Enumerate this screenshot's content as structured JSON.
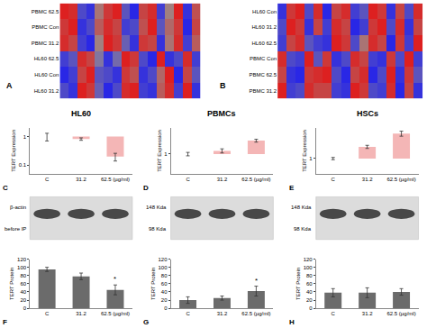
{
  "chart_data": [
    {
      "type": "heatmap",
      "panel": "A",
      "tick_labels": "y",
      "rows": [
        "PBMC 62.5",
        "PBMC Con",
        "PBMC 31.2",
        "HL60 62.5",
        "HL60 Con",
        "HL60 31.2"
      ],
      "zlim": [
        -1,
        1
      ],
      "cells": [
        [
          0.9,
          0.8,
          -0.6,
          -0.8,
          0.2,
          0.7,
          0.9,
          -0.5,
          -0.9,
          0.6,
          0.8,
          -0.7,
          0.1,
          0.9,
          -0.8,
          0.5
        ],
        [
          0.7,
          0.9,
          -0.8,
          -0.6,
          0.4,
          0.8,
          0.6,
          -0.7,
          -0.6,
          0.5,
          0.9,
          -0.5,
          0.3,
          0.7,
          -0.9,
          0.6
        ],
        [
          0.8,
          0.6,
          -0.7,
          -0.9,
          0.1,
          0.9,
          0.7,
          -0.4,
          -0.8,
          0.7,
          0.6,
          -0.8,
          0.2,
          0.8,
          -0.7,
          0.4
        ],
        [
          -0.7,
          -0.5,
          0.8,
          0.6,
          -0.2,
          -0.8,
          -0.3,
          0.9,
          0.7,
          -0.6,
          -0.9,
          0.9,
          -0.8,
          -0.6,
          0.8,
          -0.7
        ],
        [
          -0.9,
          -0.7,
          0.6,
          0.9,
          -0.5,
          -0.6,
          -0.8,
          0.7,
          0.5,
          -0.8,
          -0.6,
          0.3,
          0.9,
          -0.9,
          0.6,
          -0.5
        ],
        [
          -0.6,
          -0.8,
          0.9,
          0.7,
          -0.4,
          -0.9,
          -0.6,
          0.8,
          0.9,
          -0.7,
          -0.8,
          0.4,
          0.8,
          -0.7,
          0.9,
          -0.8
        ]
      ]
    },
    {
      "type": "heatmap",
      "panel": "B",
      "tick_labels": "y",
      "rows": [
        "HL60 Con",
        "HL60 31.2",
        "HL60 62.5",
        "PBMC Con",
        "PBMC 62.5",
        "PBMC 31.2"
      ],
      "zlim": [
        -1,
        1
      ],
      "cells": [
        [
          -0.8,
          0.7,
          0.9,
          -0.6,
          0.8,
          -0.9,
          0.6,
          0.8,
          -0.7,
          -0.5,
          0.9,
          0.7,
          -0.8,
          0.6,
          -0.6,
          0.8
        ],
        [
          -0.6,
          0.9,
          0.7,
          -0.8,
          0.6,
          -0.7,
          0.8,
          0.6,
          -0.9,
          -0.7,
          0.7,
          0.9,
          -0.6,
          0.8,
          -0.8,
          0.6
        ],
        [
          -0.7,
          0.6,
          0.8,
          -0.5,
          -0.7,
          -0.8,
          0.9,
          0.7,
          -0.6,
          0.2,
          0.8,
          0.6,
          -0.9,
          0.7,
          -0.7,
          0.9
        ],
        [
          0.8,
          -0.6,
          -0.7,
          0.9,
          -0.5,
          0.7,
          -0.8,
          -0.6,
          0.8,
          0.6,
          -0.7,
          -0.8,
          0.7,
          -0.6,
          0.9,
          -0.7
        ],
        [
          0.6,
          -0.8,
          -0.9,
          0.7,
          0.8,
          0.9,
          -0.6,
          -0.9,
          0.6,
          0.8,
          -0.9,
          -0.6,
          0.9,
          -0.8,
          0.7,
          -0.5
        ],
        [
          0.9,
          -0.7,
          -0.6,
          0.8,
          0.6,
          0.6,
          -0.7,
          -0.8,
          0.9,
          0.7,
          -0.6,
          -0.7,
          0.8,
          -0.9,
          0.6,
          -0.8
        ]
      ]
    },
    {
      "type": "bar",
      "panel": "C",
      "title": "HL60",
      "ylabel": "TERT Expression",
      "log": "y",
      "categories": [
        "C",
        "31.2",
        "62.5 (µg/ml)"
      ],
      "values": [
        1,
        0.82,
        0.2
      ],
      "errors": [
        0.3,
        0.08,
        0.06
      ],
      "color": "#f4b6b6",
      "ylim": [
        0.05,
        2
      ],
      "yticks": [
        0.1,
        1
      ]
    },
    {
      "type": "bar",
      "panel": "D",
      "title": "PBMCs",
      "ylabel": "TERT Expression",
      "log": "y",
      "categories": [
        "C",
        "31.2",
        "62.5 (µg/ml)"
      ],
      "values": [
        1,
        1.12,
        1.6
      ],
      "errors": [
        0.06,
        0.08,
        0.08
      ],
      "color": "#f4b6b6",
      "ylim": [
        0.5,
        2.5
      ],
      "yticks": [
        1
      ]
    },
    {
      "type": "bar",
      "panel": "E",
      "title": "HSCs",
      "ylabel": "TERT Expression",
      "log": "y",
      "categories": [
        "C",
        "31.2",
        "62.5 (µg/ml)"
      ],
      "values": [
        1,
        1.7,
        3.1
      ],
      "errors": [
        0.05,
        0.12,
        0.35
      ],
      "color": "#f4b6b6",
      "ylim": [
        0.5,
        4
      ],
      "yticks": [
        1
      ]
    },
    {
      "type": "blot",
      "annotations": [
        "β-actin",
        "before IP"
      ]
    },
    {
      "type": "blot",
      "annotations": [
        "148 Kda",
        "98 Kda"
      ]
    },
    {
      "type": "blot",
      "annotations": [
        "148 Kda",
        "98 Kda"
      ]
    },
    {
      "type": "bar",
      "panel": "F",
      "ylabel": "TERT Protein",
      "categories": [
        "C",
        "31.2",
        "62.5 (µg/ml)"
      ],
      "values": [
        95,
        78,
        45
      ],
      "errors": [
        5,
        8,
        12
      ],
      "color": "#6b6b6b",
      "ylim": [
        0,
        120
      ],
      "yticks": [
        0,
        20,
        40,
        60,
        80,
        100,
        120
      ],
      "annotations": [
        {
          "text": "*",
          "category": "62.5 (µg/ml)"
        }
      ]
    },
    {
      "type": "bar",
      "panel": "G",
      "ylabel": "TERT Protein",
      "categories": [
        "C",
        "31.2",
        "62.5 (µg/ml)"
      ],
      "values": [
        20,
        25,
        42
      ],
      "errors": [
        8,
        5,
        12
      ],
      "color": "#6b6b6b",
      "ylim": [
        0,
        120
      ],
      "yticks": [
        0,
        20,
        40,
        60,
        80,
        100,
        120
      ],
      "annotations": [
        {
          "text": "*",
          "category": "62.5 (µg/ml)"
        }
      ]
    },
    {
      "type": "bar",
      "panel": "H",
      "ylabel": "TERT Protein",
      "categories": [
        "C",
        "31.2",
        "62.5 (µg/ml)"
      ],
      "values": [
        38,
        38,
        40
      ],
      "errors": [
        10,
        12,
        8
      ],
      "color": "#6b6b6b",
      "ylim": [
        0,
        120
      ],
      "yticks": [
        0,
        20,
        40,
        60,
        80,
        100,
        120
      ]
    }
  ]
}
